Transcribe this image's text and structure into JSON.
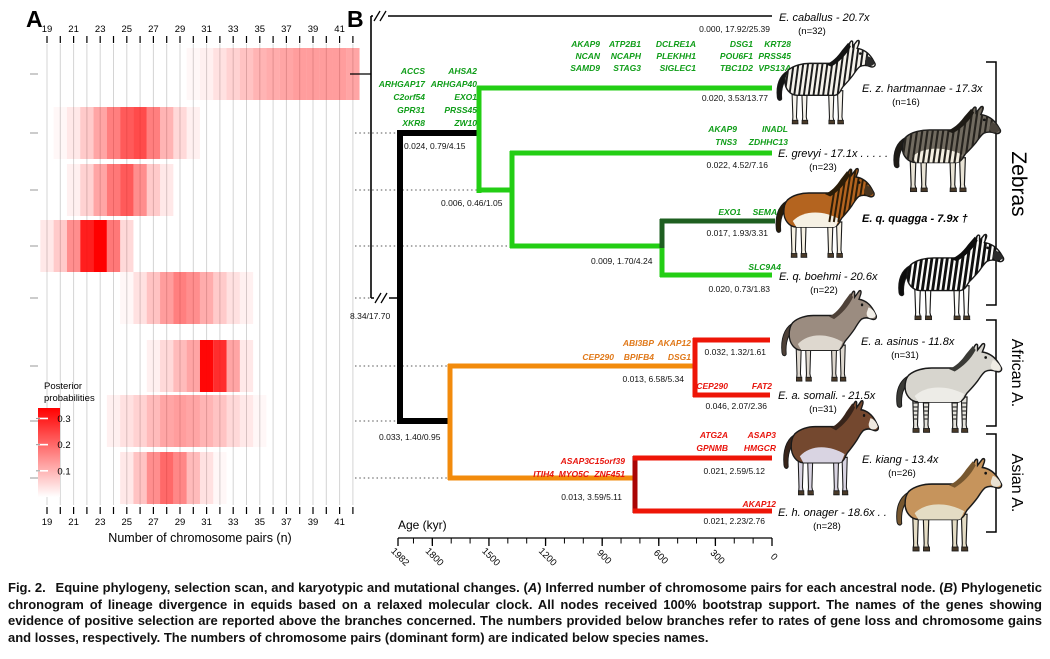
{
  "figure": {
    "panel_a_label": "A",
    "panel_b_label": "B"
  },
  "chart_data": {
    "type": "heatmap",
    "title": "",
    "xlabel": "Number of chromosome pairs (n)",
    "x_tick_labels": [
      19,
      21,
      23,
      25,
      27,
      29,
      31,
      33,
      35,
      37,
      39,
      41
    ],
    "x_range": [
      19,
      42
    ],
    "grid": true,
    "legend": {
      "title_lines": [
        "Posterior",
        "probabilities"
      ],
      "tick_labels": [
        "0.3",
        "0.2",
        "0.1"
      ],
      "tick_values": [
        0.3,
        0.2,
        0.1
      ],
      "scale_max": 0.34,
      "color": "#FF0000",
      "position": "bottom-left"
    },
    "rows": [
      {
        "node": "ancestral-node-1",
        "values": {
          "30": 0.01,
          "31": 0.02,
          "32": 0.04,
          "33": 0.06,
          "34": 0.08,
          "35": 0.1,
          "36": 0.11,
          "37": 0.12,
          "38": 0.13,
          "39": 0.13,
          "40": 0.13,
          "41": 0.13,
          "42": 0.12
        }
      },
      {
        "node": "ancestral-node-2",
        "values": {
          "20": 0.01,
          "21": 0.03,
          "22": 0.07,
          "23": 0.12,
          "24": 0.17,
          "25": 0.22,
          "26": 0.24,
          "27": 0.17,
          "28": 0.1,
          "29": 0.05,
          "30": 0.02
        }
      },
      {
        "node": "ancestral-node-3",
        "values": {
          "21": 0.02,
          "22": 0.06,
          "23": 0.12,
          "24": 0.18,
          "25": 0.22,
          "26": 0.15,
          "27": 0.07,
          "28": 0.03
        }
      },
      {
        "node": "ancestral-node-4",
        "values": {
          "19": 0.03,
          "20": 0.07,
          "21": 0.15,
          "22": 0.3,
          "23": 0.34,
          "24": 0.18,
          "25": 0.05
        }
      },
      {
        "node": "ancestral-node-5",
        "values": {
          "25": 0.01,
          "26": 0.04,
          "27": 0.08,
          "28": 0.13,
          "29": 0.17,
          "30": 0.15,
          "31": 0.11,
          "32": 0.07,
          "33": 0.04,
          "34": 0.02
        }
      },
      {
        "node": "ancestral-node-6",
        "values": {
          "27": 0.02,
          "28": 0.05,
          "29": 0.09,
          "30": 0.12,
          "31": 0.33,
          "32": 0.28,
          "33": 0.12,
          "34": 0.03
        }
      },
      {
        "node": "ancestral-node-7",
        "values": {
          "24": 0.02,
          "25": 0.04,
          "26": 0.06,
          "27": 0.09,
          "28": 0.12,
          "29": 0.13,
          "30": 0.12,
          "31": 0.1,
          "32": 0.08,
          "33": 0.05,
          "34": 0.03,
          "35": 0.01
        }
      },
      {
        "node": "ancestral-node-8",
        "values": {
          "25": 0.03,
          "26": 0.08,
          "27": 0.15,
          "28": 0.2,
          "29": 0.16,
          "30": 0.09,
          "31": 0.04,
          "32": 0.01
        }
      }
    ]
  },
  "colors": {
    "heat": "#FF0000",
    "light_green": "#23CE14",
    "dark_green": "#1E5F20",
    "orange": "#F28B0C",
    "red": "#EE1507",
    "dark_red": "#AA0505",
    "gene_green": "#0F9D18",
    "gene_orange": "#E07818",
    "gene_red": "#E8150D",
    "black": "#000000"
  },
  "tree": {
    "branches": [
      {
        "id": "caballus",
        "rate": "0.000, 17.92/25.39",
        "gene_color": null,
        "genes": []
      },
      {
        "id": "zebra_stem",
        "rate": "0.024, 0.79/4.15",
        "gene_color": "green",
        "genes": [
          [
            "ACCS",
            "ARHGAP17",
            "C2orf54",
            "GPR31",
            "XKR8"
          ],
          [
            "AHSA2",
            "ARHGAP40",
            "EXO1",
            "PRSS45",
            "ZW10"
          ]
        ]
      },
      {
        "id": "hartmannae",
        "rate": "0.020, 3.53/13.77",
        "gene_color": "green",
        "genes": [
          [
            "AKAP9",
            "NCAN",
            "SAMD9"
          ],
          [
            "ATP2B1",
            "NCAPH",
            "STAG3"
          ],
          [
            "DCLRE1A",
            "PLEKHH1",
            "SIGLEC1"
          ],
          [
            "DSG1",
            "POU6F1",
            "TBC1D2"
          ],
          [
            "KRT28",
            "PRSS45",
            "VPS13A"
          ]
        ]
      },
      {
        "id": "zebra_inner",
        "rate": "0.006, 0.46/1.05",
        "gene_color": null,
        "genes": []
      },
      {
        "id": "grevyi",
        "rate": "0.022, 4.52/7.16",
        "gene_color": "green",
        "genes": [
          [
            "AKAP9",
            "TNS3"
          ],
          [
            "INADL",
            "ZDHHC13"
          ]
        ]
      },
      {
        "id": "quagga_stem",
        "rate": "0.009, 1.70/4.24",
        "gene_color": null,
        "genes": []
      },
      {
        "id": "quagga",
        "rate": "0.017, 1.93/3.31",
        "gene_color": "green",
        "genes": [
          [
            "EXO1"
          ],
          [
            "SEMA5A"
          ]
        ]
      },
      {
        "id": "boehmi",
        "rate": "0.020, 0.73/1.83",
        "gene_color": "green",
        "genes": [
          [
            "SLC9A4"
          ]
        ]
      },
      {
        "id": "root",
        "rate": "8.34/17.70",
        "gene_color": null,
        "genes": []
      },
      {
        "id": "ass_stem",
        "rate": "0.033, 1.40/0.95",
        "gene_color": null,
        "genes": []
      },
      {
        "id": "african_stem",
        "rate": "0.013, 6.58/5.34",
        "gene_color": "orange",
        "genes": [
          [
            null,
            "CEP290"
          ],
          [
            "ABI3BP",
            "BPIFB4"
          ],
          [
            "AKAP12",
            "DSG1"
          ]
        ]
      },
      {
        "id": "asinus",
        "rate": "0.032, 1.32/1.61",
        "gene_color": null,
        "genes": []
      },
      {
        "id": "somali",
        "rate": "0.046, 2.07/2.36",
        "gene_color": "red",
        "genes": [
          [
            "CEP290"
          ],
          [
            "FAT2"
          ]
        ]
      },
      {
        "id": "asian_stem",
        "rate": "0.013, 3.59/5.11",
        "gene_color": "red",
        "genes": [
          [
            null,
            "ITIH4"
          ],
          [
            "ASAP3",
            "MYO5C"
          ],
          [
            "C15orf39",
            "ZNF451"
          ]
        ]
      },
      {
        "id": "kiang",
        "rate": "0.021, 2.59/5.12",
        "gene_color": "red",
        "genes": [
          [
            "ATG2A",
            "GPNMB"
          ],
          [
            "ASAP3",
            "HMGCR"
          ]
        ]
      },
      {
        "id": "onager",
        "rate": "0.021, 2.23/2.76",
        "gene_color": "red",
        "genes": [
          [
            "AKAP12"
          ]
        ]
      }
    ],
    "species": [
      {
        "id": "caballus",
        "label": "E. caballus - 20.7x",
        "n_label": "(n=32)",
        "bold": false,
        "visual": {
          "body": "#f3efe6",
          "belly": "#ffffff",
          "mane": "#2a2a26",
          "stripe": "#1c1c1c",
          "stripes": "none",
          "muzzle": "#3a3a36"
        }
      },
      {
        "id": "hartmannae",
        "label": "E. z. hartmannae - 17.3x",
        "n_label": "(n=16)",
        "bold": false,
        "visual": {
          "body": "#f6f3ec",
          "belly": null,
          "mane": "#141414",
          "stripe": "#1c1c1c",
          "stripes": "full",
          "muzzle": "#2b2b2b"
        }
      },
      {
        "id": "grevyi",
        "label": "E. grevyi - 17.1x . . . . .",
        "n_label": "(n=23)",
        "bold": false,
        "visual": {
          "body": "#716b60",
          "belly": "#f4efe1",
          "mane": "#1e1b16",
          "stripe": "#26231e",
          "stripes": "full",
          "muzzle": "#4a443c",
          "legs": "#e9e4d6"
        }
      },
      {
        "id": "quagga",
        "label": "E. q. quagga - 7.9x †",
        "n_label": "",
        "bold": true,
        "visual": {
          "body": "#b4641f",
          "belly": "#f6f1e4",
          "mane": "#2a1c08",
          "stripe": "#2e1e08",
          "stripes": "front",
          "muzzle": "#4a3620",
          "legs": "#f6f1e4"
        }
      },
      {
        "id": "boehmi",
        "label": "E. q. boehmi - 20.6x",
        "n_label": "(n=22)",
        "bold": false,
        "visual": {
          "body": "#fdfdfb",
          "belly": null,
          "mane": "#0d0d0d",
          "stripe": "#101010",
          "stripes": "full",
          "sw": 3,
          "muzzle": "#2b2b2b"
        }
      },
      {
        "id": "asinus",
        "label": "E. a. asinus - 11.8x",
        "n_label": "(n=31)",
        "bold": false,
        "visual": {
          "body": "#9b8c80",
          "belly": "#ded8cf",
          "mane": "#4e4138",
          "stripes": "none",
          "muzzle": "#f2efe8",
          "legs": "#ded8cf"
        }
      },
      {
        "id": "somali",
        "label": "E. a. somali. - 21.5x",
        "n_label": "(n=31)",
        "bold": false,
        "visual": {
          "body": "#d7d5ce",
          "belly": "#edece7",
          "mane": "#3a3a36",
          "stripes": "none",
          "muzzle": "#efece4",
          "legs": "#e5e3dc",
          "legStripes": true
        }
      },
      {
        "id": "kiang",
        "label": "E. kiang - 13.4x",
        "n_label": "(n=26)",
        "bold": false,
        "visual": {
          "body": "#74482f",
          "belly": "#d9d4e2",
          "mane": "#38241a",
          "stripes": "none",
          "muzzle": "#efe9e0",
          "legs": "#d9d4e2"
        }
      },
      {
        "id": "onager",
        "label": "E. h. onager - 18.6x . .",
        "n_label": "(n=28)",
        "bold": false,
        "visual": {
          "body": "#c6945c",
          "belly": "#e4dcc4",
          "mane": "#77572f",
          "stripes": "none",
          "muzzle": "#eae2d2",
          "legs": "#e4dcc4"
        }
      }
    ],
    "clade_groups": [
      {
        "id": "zebras",
        "label": "Zebras"
      },
      {
        "id": "african",
        "label": "African A."
      },
      {
        "id": "asian",
        "label": "Asian A."
      }
    ],
    "age_axis": {
      "label": "Age (kyr)",
      "major_ticks": [
        1982,
        1800,
        1500,
        1200,
        900,
        600,
        300,
        0
      ],
      "minor_tick_step": 100,
      "range": [
        1982,
        0
      ]
    }
  },
  "caption": {
    "lead": "Fig. 2.",
    "segments": [
      {
        "text": " Equine phylogeny, selection scan, and karyotypic and mutational changes. ("
      },
      {
        "text": "A",
        "italic": true
      },
      {
        "text": ") Inferred number of chromosome pairs for each ancestral node. ("
      },
      {
        "text": "B",
        "italic": true
      },
      {
        "text": ") Phylogenetic chronogram of lineage divergence in equids based on a relaxed molecular clock. All nodes received 100% bootstrap support. The names of the genes showing evidence of positive selection are reported above the branches concerned. The numbers provided below branches refer to rates of gene loss and chromosome gains and losses, respectively. The numbers of chromosome pairs (dominant form) are indicated below species names."
      }
    ]
  }
}
